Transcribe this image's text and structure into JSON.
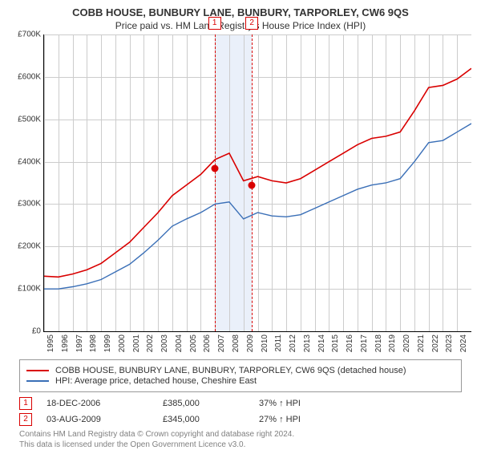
{
  "title": "COBB HOUSE, BUNBURY LANE, BUNBURY, TARPORLEY, CW6 9QS",
  "subtitle": "Price paid vs. HM Land Registry's House Price Index (HPI)",
  "chart": {
    "type": "line",
    "background_color": "#ffffff",
    "grid_color": "#cccccc",
    "ylim": [
      0,
      700000
    ],
    "ytick_step": 100000,
    "y_labels": [
      "£0",
      "£100K",
      "£200K",
      "£300K",
      "£400K",
      "£500K",
      "£600K",
      "£700K"
    ],
    "x_labels": [
      "1995",
      "1996",
      "1997",
      "1998",
      "1999",
      "2000",
      "2001",
      "2002",
      "2003",
      "2004",
      "2005",
      "2006",
      "2007",
      "2008",
      "2009",
      "2010",
      "2011",
      "2012",
      "2013",
      "2014",
      "2015",
      "2016",
      "2017",
      "2018",
      "2019",
      "2020",
      "2021",
      "2022",
      "2023",
      "2024"
    ],
    "xlim_years": [
      1995,
      2025
    ],
    "highlight_band": {
      "start_year": 2006.97,
      "end_year": 2009.59,
      "color": "#eaf0fa"
    },
    "series": [
      {
        "name": "property",
        "color": "#d90000",
        "line_width": 1.6,
        "data": [
          [
            1995,
            130000
          ],
          [
            1996,
            128000
          ],
          [
            1997,
            135000
          ],
          [
            1998,
            145000
          ],
          [
            1999,
            160000
          ],
          [
            2000,
            185000
          ],
          [
            2001,
            210000
          ],
          [
            2002,
            245000
          ],
          [
            2003,
            280000
          ],
          [
            2004,
            320000
          ],
          [
            2005,
            345000
          ],
          [
            2006,
            370000
          ],
          [
            2007,
            405000
          ],
          [
            2008,
            420000
          ],
          [
            2009,
            355000
          ],
          [
            2010,
            365000
          ],
          [
            2011,
            355000
          ],
          [
            2012,
            350000
          ],
          [
            2013,
            360000
          ],
          [
            2014,
            380000
          ],
          [
            2015,
            400000
          ],
          [
            2016,
            420000
          ],
          [
            2017,
            440000
          ],
          [
            2018,
            455000
          ],
          [
            2019,
            460000
          ],
          [
            2020,
            470000
          ],
          [
            2021,
            520000
          ],
          [
            2022,
            575000
          ],
          [
            2023,
            580000
          ],
          [
            2024,
            595000
          ],
          [
            2025,
            620000
          ]
        ]
      },
      {
        "name": "hpi",
        "color": "#3a6fb7",
        "line_width": 1.4,
        "data": [
          [
            1995,
            100000
          ],
          [
            1996,
            100000
          ],
          [
            1997,
            105000
          ],
          [
            1998,
            112000
          ],
          [
            1999,
            122000
          ],
          [
            2000,
            140000
          ],
          [
            2001,
            158000
          ],
          [
            2002,
            185000
          ],
          [
            2003,
            215000
          ],
          [
            2004,
            248000
          ],
          [
            2005,
            265000
          ],
          [
            2006,
            280000
          ],
          [
            2007,
            300000
          ],
          [
            2008,
            305000
          ],
          [
            2009,
            265000
          ],
          [
            2010,
            280000
          ],
          [
            2011,
            272000
          ],
          [
            2012,
            270000
          ],
          [
            2013,
            275000
          ],
          [
            2014,
            290000
          ],
          [
            2015,
            305000
          ],
          [
            2016,
            320000
          ],
          [
            2017,
            335000
          ],
          [
            2018,
            345000
          ],
          [
            2019,
            350000
          ],
          [
            2020,
            360000
          ],
          [
            2021,
            400000
          ],
          [
            2022,
            445000
          ],
          [
            2023,
            450000
          ],
          [
            2024,
            470000
          ],
          [
            2025,
            490000
          ]
        ]
      }
    ],
    "markers": [
      {
        "label": "1",
        "year": 2006.97,
        "price": 385000,
        "color": "#d90000"
      },
      {
        "label": "2",
        "year": 2009.59,
        "price": 345000,
        "color": "#d90000"
      }
    ]
  },
  "legend": {
    "items": [
      {
        "color": "#d90000",
        "label": "COBB HOUSE, BUNBURY LANE, BUNBURY, TARPORLEY, CW6 9QS (detached house)"
      },
      {
        "color": "#3a6fb7",
        "label": "HPI: Average price, detached house, Cheshire East"
      }
    ]
  },
  "transactions": [
    {
      "num": "1",
      "color": "#d90000",
      "date": "18-DEC-2006",
      "price": "£385,000",
      "pct": "37% ↑ HPI"
    },
    {
      "num": "2",
      "color": "#d90000",
      "date": "03-AUG-2009",
      "price": "£345,000",
      "pct": "27% ↑ HPI"
    }
  ],
  "footer1": "Contains HM Land Registry data © Crown copyright and database right 2024.",
  "footer2": "This data is licensed under the Open Government Licence v3.0."
}
